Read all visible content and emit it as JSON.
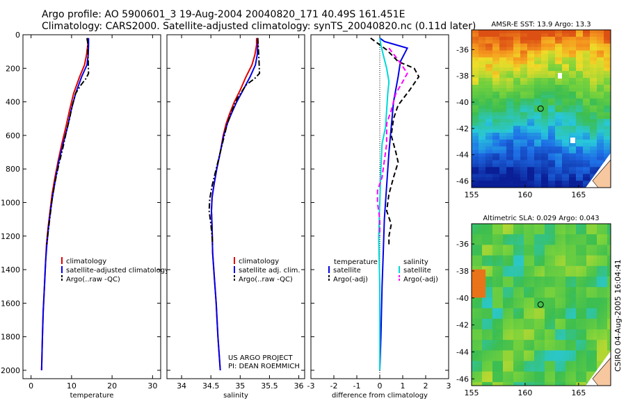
{
  "header": {
    "line1": "Argo profile: AO 5900601_3 19-Aug-2004 20040820_171 40.49S 161.451E",
    "line2": "Climatology: CARS2000. Satellite-adjusted climatology: synTS_20040820.nc (0.11d later)"
  },
  "side_label": "CSIRO 04-Aug-2005 16:04:41",
  "colors": {
    "climatology": "#e00000",
    "satellite": "#0000e6",
    "argo": "#000000",
    "sal_satellite": "#00d8d8",
    "sal_argo": "#ff00ff",
    "marker": "#000000"
  },
  "chart_data": [
    {
      "type": "line",
      "xlabel": "temperature",
      "ylabel": "",
      "xlim": [
        -2,
        32
      ],
      "ylim": [
        2050,
        0
      ],
      "xticks": [
        0,
        10,
        20,
        30
      ],
      "yticks": [
        0,
        200,
        400,
        600,
        800,
        1000,
        1200,
        1400,
        1600,
        1800,
        2000
      ],
      "legend": [
        "climatology",
        "satellite-adjusted climatology",
        "Argo(..raw -QC)"
      ],
      "series": [
        {
          "name": "climatology",
          "style": "solid",
          "color": "climatology",
          "points": [
            [
              14,
              20
            ],
            [
              14,
              60
            ],
            [
              13.7,
              120
            ],
            [
              13.2,
              180
            ],
            [
              12,
              250
            ],
            [
              10.5,
              350
            ],
            [
              9.5,
              450
            ],
            [
              8.6,
              550
            ],
            [
              7.6,
              650
            ],
            [
              6.7,
              750
            ],
            [
              5.9,
              850
            ],
            [
              5.2,
              950
            ],
            [
              4.7,
              1050
            ],
            [
              4.2,
              1150
            ],
            [
              3.8,
              1250
            ],
            [
              3.6,
              1350
            ],
            [
              3.3,
              1500
            ],
            [
              3.0,
              1650
            ],
            [
              2.8,
              1800
            ],
            [
              2.6,
              2000
            ]
          ]
        },
        {
          "name": "satellite-adjusted climatology",
          "style": "solid",
          "color": "satellite",
          "points": [
            [
              14.2,
              20
            ],
            [
              14.2,
              60
            ],
            [
              14.1,
              120
            ],
            [
              13.8,
              180
            ],
            [
              12.5,
              250
            ],
            [
              11,
              350
            ],
            [
              9.9,
              450
            ],
            [
              9,
              550
            ],
            [
              7.9,
              650
            ],
            [
              6.9,
              750
            ],
            [
              6.1,
              850
            ],
            [
              5.4,
              950
            ],
            [
              4.8,
              1050
            ],
            [
              4.3,
              1150
            ],
            [
              3.9,
              1250
            ],
            [
              3.6,
              1350
            ],
            [
              3.3,
              1500
            ],
            [
              3.0,
              1650
            ],
            [
              2.8,
              1800
            ],
            [
              2.6,
              2000
            ]
          ]
        },
        {
          "name": "Argo(..raw -QC)",
          "style": "dashdot",
          "color": "argo",
          "points": [
            [
              13.8,
              20
            ],
            [
              14,
              50
            ],
            [
              14,
              100
            ],
            [
              14.1,
              150
            ],
            [
              14.2,
              230
            ],
            [
              13.6,
              260
            ],
            [
              12.3,
              300
            ],
            [
              11,
              350
            ],
            [
              10.2,
              420
            ],
            [
              9.5,
              500
            ],
            [
              8.7,
              580
            ],
            [
              7.8,
              680
            ],
            [
              6.8,
              780
            ],
            [
              5.9,
              880
            ],
            [
              5.2,
              980
            ],
            [
              4.7,
              1080
            ],
            [
              4.2,
              1180
            ],
            [
              3.9,
              1250
            ]
          ]
        }
      ]
    },
    {
      "type": "line",
      "xlabel": "salinity",
      "ylabel": "",
      "xlim": [
        33.75,
        36.1
      ],
      "xticks": [
        34,
        34.5,
        35,
        35.5,
        36
      ],
      "legend": [
        "climatology",
        "satellite adj. clim.",
        "Argo(..raw -QC)"
      ],
      "annotations": [
        "US ARGO PROJECT",
        "PI: DEAN ROEMMICH"
      ],
      "series": [
        {
          "name": "climatology",
          "style": "solid",
          "color": "climatology",
          "points": [
            [
              35.28,
              20
            ],
            [
              35.28,
              60
            ],
            [
              35.25,
              120
            ],
            [
              35.2,
              180
            ],
            [
              35.1,
              250
            ],
            [
              35.0,
              330
            ],
            [
              34.9,
              400
            ],
            [
              34.82,
              470
            ],
            [
              34.76,
              530
            ],
            [
              34.71,
              600
            ],
            [
              34.66,
              700
            ],
            [
              34.6,
              800
            ],
            [
              34.55,
              900
            ],
            [
              34.52,
              970
            ],
            [
              34.51,
              1050
            ],
            [
              34.52,
              1150
            ],
            [
              34.53,
              1300
            ],
            [
              34.56,
              1450
            ],
            [
              34.59,
              1600
            ],
            [
              34.62,
              1800
            ],
            [
              34.66,
              2000
            ]
          ]
        },
        {
          "name": "satellite adj. clim.",
          "style": "solid",
          "color": "satellite",
          "points": [
            [
              35.3,
              20
            ],
            [
              35.3,
              60
            ],
            [
              35.29,
              120
            ],
            [
              35.26,
              180
            ],
            [
              35.17,
              250
            ],
            [
              35.05,
              330
            ],
            [
              34.94,
              400
            ],
            [
              34.85,
              470
            ],
            [
              34.78,
              530
            ],
            [
              34.72,
              600
            ],
            [
              34.66,
              700
            ],
            [
              34.6,
              800
            ],
            [
              34.55,
              900
            ],
            [
              34.52,
              970
            ],
            [
              34.51,
              1050
            ],
            [
              34.52,
              1150
            ],
            [
              34.53,
              1300
            ],
            [
              34.56,
              1450
            ],
            [
              34.59,
              1600
            ],
            [
              34.62,
              1800
            ],
            [
              34.66,
              2000
            ]
          ]
        },
        {
          "name": "Argo(..raw -QC)",
          "style": "dashdot",
          "color": "argo",
          "points": [
            [
              35.3,
              20
            ],
            [
              35.31,
              80
            ],
            [
              35.32,
              150
            ],
            [
              35.33,
              230
            ],
            [
              35.25,
              260
            ],
            [
              35.1,
              300
            ],
            [
              34.95,
              380
            ],
            [
              34.85,
              460
            ],
            [
              34.78,
              530
            ],
            [
              34.73,
              600
            ],
            [
              34.66,
              700
            ],
            [
              34.59,
              800
            ],
            [
              34.52,
              900
            ],
            [
              34.48,
              980
            ],
            [
              34.47,
              1050
            ],
            [
              34.5,
              1130
            ],
            [
              34.52,
              1200
            ],
            [
              34.53,
              1250
            ]
          ]
        }
      ]
    },
    {
      "type": "line",
      "xlabel": "difference from climatology",
      "xlim": [
        -3,
        3
      ],
      "xticks": [
        -3,
        -2,
        -1,
        0,
        1,
        2,
        3
      ],
      "legend_left": [
        "temperature",
        "satellite",
        "Argo(-adj)"
      ],
      "legend_right": [
        "salinity",
        "satellite",
        "Argo(-adj)"
      ],
      "series": [
        {
          "name": "temperature satellite",
          "style": "solid",
          "color": "satellite",
          "points": [
            [
              0,
              20
            ],
            [
              0.2,
              40
            ],
            [
              0.7,
              60
            ],
            [
              1.2,
              80
            ],
            [
              0.9,
              160
            ],
            [
              0.8,
              250
            ],
            [
              0.6,
              400
            ],
            [
              0.5,
              550
            ],
            [
              0.4,
              700
            ],
            [
              0.3,
              900
            ],
            [
              0.2,
              1100
            ],
            [
              0.15,
              1300
            ],
            [
              0.1,
              1500
            ],
            [
              0.05,
              1800
            ],
            [
              0.0,
              2000
            ]
          ]
        },
        {
          "name": "temperature Argo(-adj)",
          "style": "dashed",
          "color": "argo",
          "points": [
            [
              -0.4,
              20
            ],
            [
              -0.2,
              40
            ],
            [
              0.3,
              90
            ],
            [
              0.8,
              160
            ],
            [
              1.5,
              200
            ],
            [
              1.7,
              250
            ],
            [
              1.3,
              330
            ],
            [
              0.8,
              420
            ],
            [
              0.6,
              500
            ],
            [
              0.5,
              600
            ],
            [
              0.7,
              700
            ],
            [
              0.8,
              760
            ],
            [
              0.6,
              850
            ],
            [
              0.4,
              950
            ],
            [
              0.3,
              1050
            ],
            [
              0.5,
              1130
            ],
            [
              0.4,
              1200
            ],
            [
              0.4,
              1250
            ]
          ]
        },
        {
          "name": "salinity satellite",
          "style": "solid",
          "color": "sal_satellite",
          "points": [
            [
              0,
              20
            ],
            [
              0.05,
              60
            ],
            [
              0.15,
              120
            ],
            [
              0.3,
              200
            ],
            [
              0.4,
              280
            ],
            [
              0.35,
              350
            ],
            [
              0.3,
              450
            ],
            [
              0.25,
              550
            ],
            [
              0.1,
              650
            ],
            [
              0.05,
              800
            ],
            [
              0.0,
              1000
            ],
            [
              -0.05,
              1200
            ],
            [
              0.0,
              1500
            ],
            [
              0.0,
              1800
            ],
            [
              0.0,
              2000
            ]
          ]
        },
        {
          "name": "salinity Argo(-adj)",
          "style": "dashed",
          "color": "sal_argo",
          "points": [
            [
              0.4,
              80
            ],
            [
              0.8,
              150
            ],
            [
              1.2,
              230
            ],
            [
              1.0,
              280
            ],
            [
              0.7,
              350
            ],
            [
              0.5,
              450
            ],
            [
              0.3,
              530
            ],
            [
              0.3,
              650
            ],
            [
              0.2,
              750
            ],
            [
              0.1,
              850
            ],
            [
              -0.1,
              930
            ],
            [
              -0.1,
              1000
            ],
            [
              0.0,
              1100
            ],
            [
              0.0,
              1200
            ]
          ]
        }
      ]
    }
  ],
  "maps": [
    {
      "title": "AMSR-E SST: 13.9 Argo: 13.3",
      "xticks": [
        155,
        160,
        165
      ],
      "yticks": [
        -36,
        -38,
        -40,
        -42,
        -44,
        -46
      ],
      "lon": [
        155,
        168
      ],
      "lat": [
        -46.5,
        -34.5
      ],
      "marker": [
        161.45,
        -40.49
      ],
      "kind": "sst"
    },
    {
      "title": "Altimetric SLA: 0.029 Argo: 0.043",
      "xticks": [
        155,
        160,
        165
      ],
      "yticks": [
        -36,
        -38,
        -40,
        -42,
        -44,
        -46
      ],
      "lon": [
        155,
        168
      ],
      "lat": [
        -46.5,
        -34.5
      ],
      "marker": [
        161.45,
        -40.49
      ],
      "kind": "sla"
    }
  ]
}
